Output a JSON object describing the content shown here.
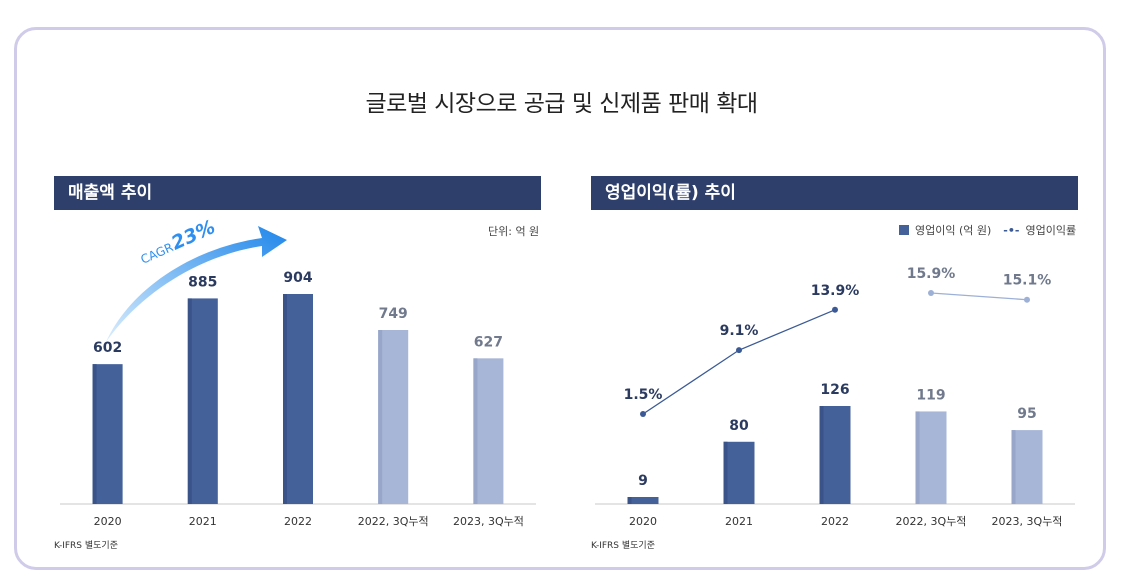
{
  "title": "글로벌 시장으로 공급 및 신제품 판매 확대",
  "panels": {
    "left": {
      "header": "매출액 추이",
      "unit": "단위: 억  원",
      "footnote": "K-IFRS 별도기준",
      "cagr_label": "CAGR",
      "cagr_value": "23%"
    },
    "right": {
      "header": "영업이익(률) 추이",
      "legend_bar": "영업이익 (억 원)",
      "legend_line": "영업이익률",
      "legend_line_marker": "-•-",
      "footnote": "K-IFRS 별도기준"
    }
  },
  "colors": {
    "frame_border": "#cfcbe9",
    "header_bg": "#2f3f6b",
    "bar_dark": "#44619a",
    "bar_light": "#a7b5d6",
    "line_dark": "#3b5a95",
    "line_light": "#9db0d6",
    "arrow_start": "#dbeefd",
    "arrow_end": "#1f86ea"
  },
  "chart_data": [
    {
      "type": "bar",
      "title": "매출액 추이",
      "categories": [
        "2020",
        "2021",
        "2022",
        "2022, 3Q누적",
        "2023, 3Q누적"
      ],
      "values": [
        602,
        885,
        904,
        749,
        627
      ],
      "value_labels": [
        "602",
        "885",
        "904",
        "749",
        "627"
      ],
      "highlight": [
        true,
        true,
        true,
        false,
        false
      ],
      "unit": "억 원",
      "ylim": [
        0,
        920
      ]
    },
    {
      "type": "bar+line",
      "title": "영업이익(률) 추이",
      "categories": [
        "2020",
        "2021",
        "2022",
        "2022, 3Q누적",
        "2023, 3Q누적"
      ],
      "series": [
        {
          "name": "영업이익 (억 원)",
          "type": "bar",
          "values": [
            9,
            80,
            126,
            119,
            95
          ],
          "value_labels": [
            "9",
            "80",
            "126",
            "119",
            "95"
          ],
          "highlight": [
            true,
            true,
            true,
            false,
            false
          ]
        },
        {
          "name": "영업이익률",
          "type": "line",
          "values": [
            1.5,
            9.1,
            13.9,
            15.9,
            15.1
          ],
          "value_labels": [
            "1.5%",
            "9.1%",
            "13.9%",
            "15.9%",
            "15.1%"
          ],
          "segments": [
            [
              0,
              2
            ],
            [
              3,
              4
            ]
          ]
        }
      ]
    }
  ]
}
